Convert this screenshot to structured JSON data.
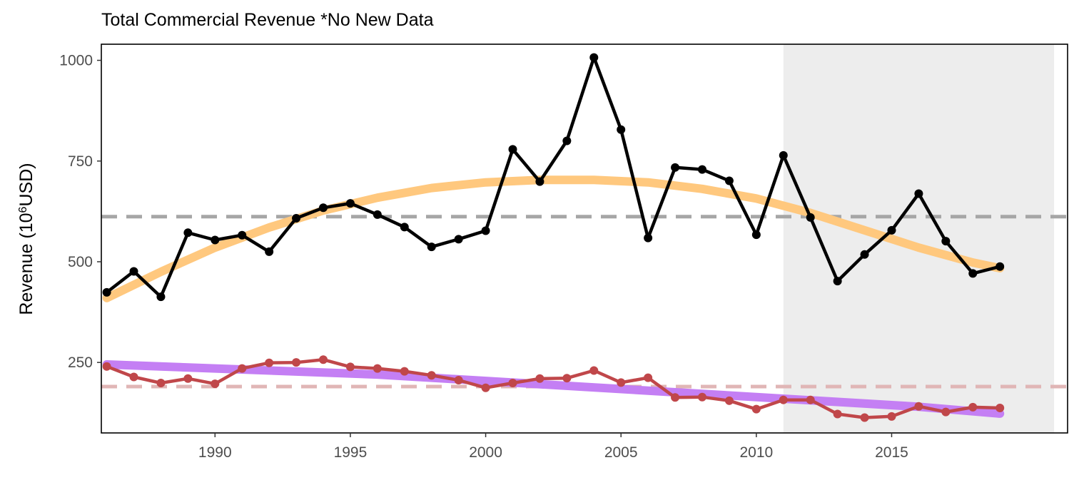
{
  "chart_data": {
    "type": "line",
    "title": "Total Commercial Revenue *No New Data",
    "ylabel_main": "Revenue (10",
    "ylabel_sup": "6",
    "ylabel_tail": "USD)",
    "xlabel": "",
    "xlim": [
      1985.8,
      2021.5
    ],
    "ylim": [
      75,
      1040
    ],
    "xticks": [
      1990,
      1995,
      2000,
      2005,
      2010,
      2015
    ],
    "yticks": [
      250,
      500,
      750,
      1000
    ],
    "grid": false,
    "legend": "none",
    "shaded_region": {
      "x_start": 2011,
      "x_end": 2021,
      "color": "#ededed"
    },
    "x": [
      1986,
      1987,
      1988,
      1989,
      1990,
      1991,
      1992,
      1993,
      1994,
      1995,
      1996,
      1997,
      1998,
      1999,
      2000,
      2001,
      2002,
      2003,
      2004,
      2005,
      2006,
      2007,
      2008,
      2009,
      2010,
      2011,
      2012,
      2013,
      2014,
      2015,
      2016,
      2017,
      2018,
      2019
    ],
    "series": [
      {
        "color": "#000000",
        "values": [
          424,
          476,
          413,
          572,
          554,
          566,
          525,
          608,
          634,
          645,
          617,
          586,
          537,
          556,
          577,
          779,
          699,
          800,
          1007,
          828,
          559,
          734,
          729,
          701,
          567,
          764,
          610,
          452,
          518,
          578,
          669,
          551,
          471,
          488
        ]
      },
      {
        "color": "#c0474a",
        "values": [
          240,
          214,
          199,
          210,
          197,
          235,
          249,
          250,
          257,
          239,
          235,
          228,
          218,
          206,
          187,
          199,
          210,
          211,
          230,
          200,
          212,
          163,
          164,
          155,
          134,
          157,
          157,
          122,
          113,
          116,
          141,
          127,
          139,
          137
        ]
      }
    ],
    "trends": [
      {
        "color": "#ffc87e",
        "x": [
          1986,
          1988,
          1990,
          1992,
          1994,
          1996,
          1998,
          2000,
          2002,
          2004,
          2006,
          2008,
          2010,
          2012,
          2014,
          2016,
          2018,
          2019
        ],
        "values": [
          410,
          475,
          535,
          585,
          627,
          659,
          683,
          697,
          703,
          703,
          697,
          681,
          657,
          621,
          578,
          535,
          498,
          484
        ]
      },
      {
        "color": "#c47ff4",
        "x": [
          1986,
          1996,
          2006,
          2016,
          2019
        ],
        "values": [
          245,
          220,
          180,
          140,
          123
        ]
      }
    ],
    "reference_lines": [
      {
        "y": 612,
        "color": "#a6a6a6"
      },
      {
        "y": 190,
        "color": "#e0b6b6"
      }
    ]
  }
}
